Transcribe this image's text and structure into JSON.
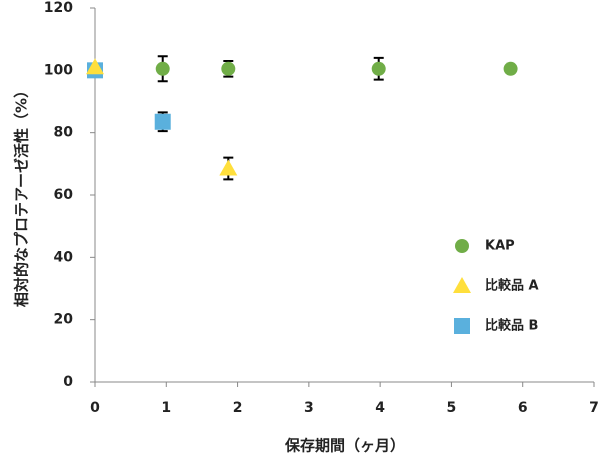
{
  "chart_data": {
    "type": "scatter",
    "x_label": "保存期間（ヶ月）",
    "y_label": "相対的なプロテアーゼ活性（%）",
    "xlim": [
      0,
      7
    ],
    "xticks": [
      0,
      1,
      2,
      3,
      4,
      5,
      6,
      7
    ],
    "ylim": [
      0,
      120
    ],
    "yticks": [
      0,
      20,
      40,
      60,
      80,
      100,
      120
    ],
    "legend": "right",
    "series": [
      {
        "name": "KAP",
        "color": "#70ad47",
        "marker": "circle",
        "x": [
          0.95,
          1.87,
          3.98,
          5.83
        ],
        "values": [
          100.5,
          100.5,
          100.5,
          100.5
        ],
        "errors": [
          4,
          2.5,
          3.5,
          null
        ]
      },
      {
        "name": "比較品 A",
        "color": "#ffdf3c",
        "marker": "triangle",
        "x": [
          0,
          1.87
        ],
        "values": [
          101,
          68.5
        ],
        "errors": [
          null,
          3.5
        ]
      },
      {
        "name": "比較品 B",
        "color": "#5ab0dd",
        "marker": "square",
        "x": [
          0,
          0.95
        ],
        "values": [
          100,
          83.5
        ],
        "errors": [
          null,
          3
        ]
      }
    ]
  }
}
